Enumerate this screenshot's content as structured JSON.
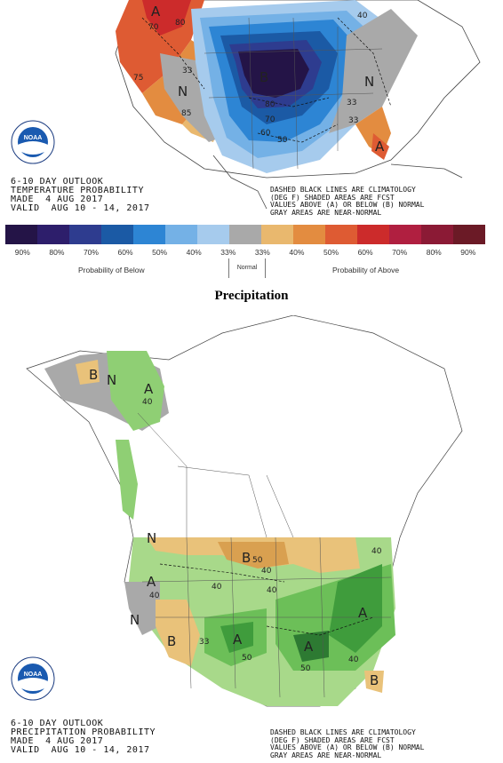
{
  "temperature": {
    "outlook_lines": [
      "6-10 DAY OUTLOOK",
      "TEMPERATURE PROBABILITY",
      "MADE  4 AUG 2017",
      "VALID  AUG 10 - 14, 2017"
    ],
    "legend_notes": [
      "DASHED BLACK LINES ARE CLIMATOLOGY",
      "(DEG F) SHADED AREAS ARE FCST",
      "VALUES ABOVE (A) OR BELOW (B) NORMAL",
      "GRAY AREAS ARE NEAR-NORMAL"
    ],
    "region_labels": {
      "a_northwest": "A",
      "b_central": "B",
      "n_southwest": "N",
      "n_east": "N",
      "a_florida": "A"
    },
    "contour_labels": {
      "c70": "70",
      "c80": "80",
      "c70b": "70",
      "c60": "60",
      "c50": "50",
      "c50b": "50",
      "c40": "40",
      "c33": "33",
      "c33b": "33",
      "c33c": "33",
      "c40b": "40",
      "c50c": "50",
      "c60b": "60",
      "c80b": "80",
      "c75": "75",
      "c85": "85"
    }
  },
  "colorbar": {
    "colors": [
      "#241447",
      "#2d1e6b",
      "#2e3c8f",
      "#1b5aa5",
      "#2d85d4",
      "#74b1e6",
      "#a6cbed",
      "#a9a9a9",
      "#e9b86e",
      "#e38c40",
      "#de5b33",
      "#cc2b2b",
      "#b01f40",
      "#8b1a35",
      "#6b1a26"
    ],
    "labels": [
      "90%",
      "80%",
      "70%",
      "60%",
      "50%",
      "40%",
      "33%",
      "33%",
      "40%",
      "50%",
      "60%",
      "70%",
      "80%",
      "90%"
    ],
    "below_caption": "Probability of Below",
    "normal_caption": "Normal",
    "above_caption": "Probability of Above"
  },
  "precipitation": {
    "heading": "Precipitation",
    "outlook_lines": [
      "6-10 DAY OUTLOOK",
      "PRECIPITATION PROBABILITY",
      "MADE  4 AUG 2017",
      "VALID  AUG 10 - 14, 2017"
    ],
    "legend_notes": [
      "DASHED BLACK LINES ARE CLIMATOLOGY",
      "(DEG F) SHADED AREAS ARE FCST",
      "VALUES ABOVE (A) OR BELOW (B) NORMAL",
      "GRAY AREAS ARE NEAR-NORMAL"
    ],
    "region_labels": {
      "b_alaska": "B",
      "n_alaska": "N",
      "a_alaska": "A",
      "n_north": "N",
      "b_north": "B",
      "a_northwest": "A",
      "n_west": "N",
      "b_southwest": "B",
      "a_southwest": "A",
      "a_east": "A",
      "a_southeast": "A",
      "b_florida": "B"
    },
    "contour_labels": {
      "p40a": "40",
      "p40b": "40",
      "p40c": "40",
      "p33": "33",
      "p50a": "50",
      "p50b": "50",
      "p40d": "40",
      "p40e": "40",
      "p50c": "50",
      "p40f": "40",
      "p40g": "40"
    }
  },
  "logo": {
    "text": "NOAA"
  }
}
